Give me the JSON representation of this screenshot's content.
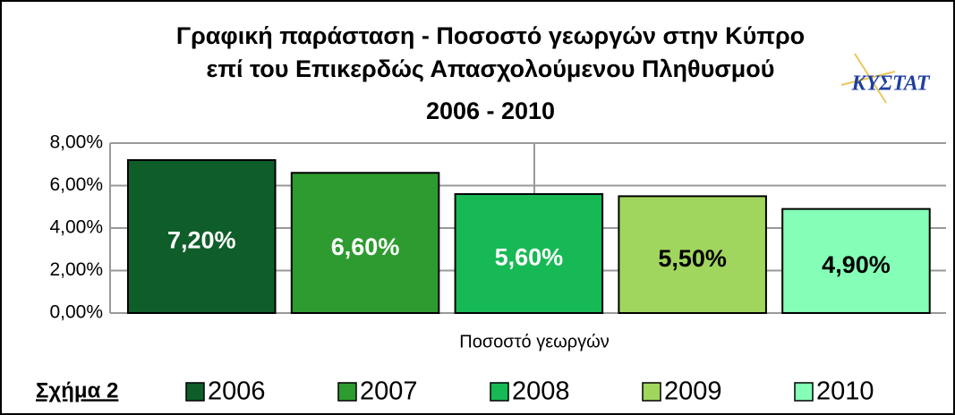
{
  "chart_data": {
    "type": "bar",
    "title": "Γραφική παράσταση  -  Ποσοστό γεωργών στην Κύπρο",
    "subtitle": "επί του Επικερδώς Απασχολούμενου Πληθυσμού",
    "period": "2006 - 2010",
    "logo": "ΚΥΣΤΑΤ",
    "figure_label": "Σχήμα 2",
    "categories": [
      "Ποσοστό γεωργών"
    ],
    "series": [
      {
        "name": "2006",
        "color": "#0f5e2a",
        "values": [
          7.2
        ],
        "value_labels": [
          "7,20%"
        ]
      },
      {
        "name": "2007",
        "color": "#2e9b30",
        "values": [
          6.6
        ],
        "value_labels": [
          "6,60%"
        ]
      },
      {
        "name": "2008",
        "color": "#17b955",
        "values": [
          5.6
        ],
        "value_labels": [
          "5,60%"
        ]
      },
      {
        "name": "2009",
        "color": "#a0d55e",
        "values": [
          5.5
        ],
        "value_labels": [
          "5,50%"
        ]
      },
      {
        "name": "2010",
        "color": "#85ffb8",
        "values": [
          4.9
        ],
        "value_labels": [
          "4,90%"
        ]
      }
    ],
    "ylim": [
      0,
      8
    ],
    "yticks": [
      {
        "value": 0,
        "label": "0,00%"
      },
      {
        "value": 2,
        "label": "2,00%"
      },
      {
        "value": 4,
        "label": "4,00%"
      },
      {
        "value": 6,
        "label": "6,00%"
      },
      {
        "value": 8,
        "label": "8,00%"
      }
    ],
    "grid": true,
    "legend": "bottom"
  }
}
